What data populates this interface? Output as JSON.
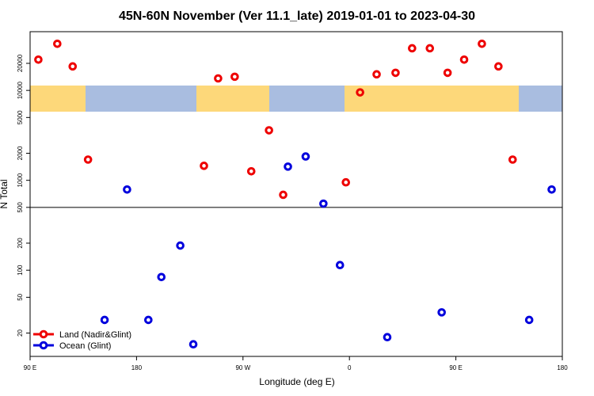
{
  "chart_data": {
    "type": "scatter",
    "title": "45N-60N November (Ver 11.1_late)   2019-01-01 to 2023-04-30",
    "x_label": "Longitude (deg E)",
    "y_label": "N Total",
    "log_y": true,
    "xlim": [
      90,
      540
    ],
    "xticks": [
      {
        "value": 90,
        "label": "90 E"
      },
      {
        "value": 180,
        "label": "180"
      },
      {
        "value": 270,
        "label": "90 W"
      },
      {
        "value": 360,
        "label": "0"
      },
      {
        "value": 450,
        "label": "90 E"
      },
      {
        "value": 540,
        "label": "180"
      }
    ],
    "ylim": [
      11,
      45000
    ],
    "yticks": [
      20,
      50,
      100,
      200,
      500,
      1000,
      2000,
      5000,
      10000,
      20000
    ],
    "reference_line": 500,
    "legend": "bottom-left",
    "series": [
      {
        "name": "Land (Nadir&Glint)",
        "color": "#ee0000",
        "x": [
          97,
          113,
          126,
          139,
          237,
          249,
          263,
          277,
          292,
          304,
          357,
          369,
          383,
          399,
          413,
          428,
          443,
          457,
          472,
          486,
          498
        ],
        "values": [
          22000,
          33000,
          18500,
          1700,
          1450,
          13600,
          14200,
          1260,
          3600,
          690,
          950,
          9500,
          15100,
          15700,
          29400,
          29400,
          15700,
          22000,
          33000,
          18500,
          1700
        ]
      },
      {
        "name": "Ocean (Glint)",
        "color": "#0000dd",
        "x": [
          153,
          172,
          190,
          201,
          217,
          228,
          308,
          323,
          338,
          352,
          392,
          438,
          512,
          531
        ],
        "values": [
          28,
          790,
          28,
          84,
          188,
          15,
          1420,
          1840,
          550,
          114,
          18,
          34,
          28,
          790
        ]
      }
    ]
  }
}
